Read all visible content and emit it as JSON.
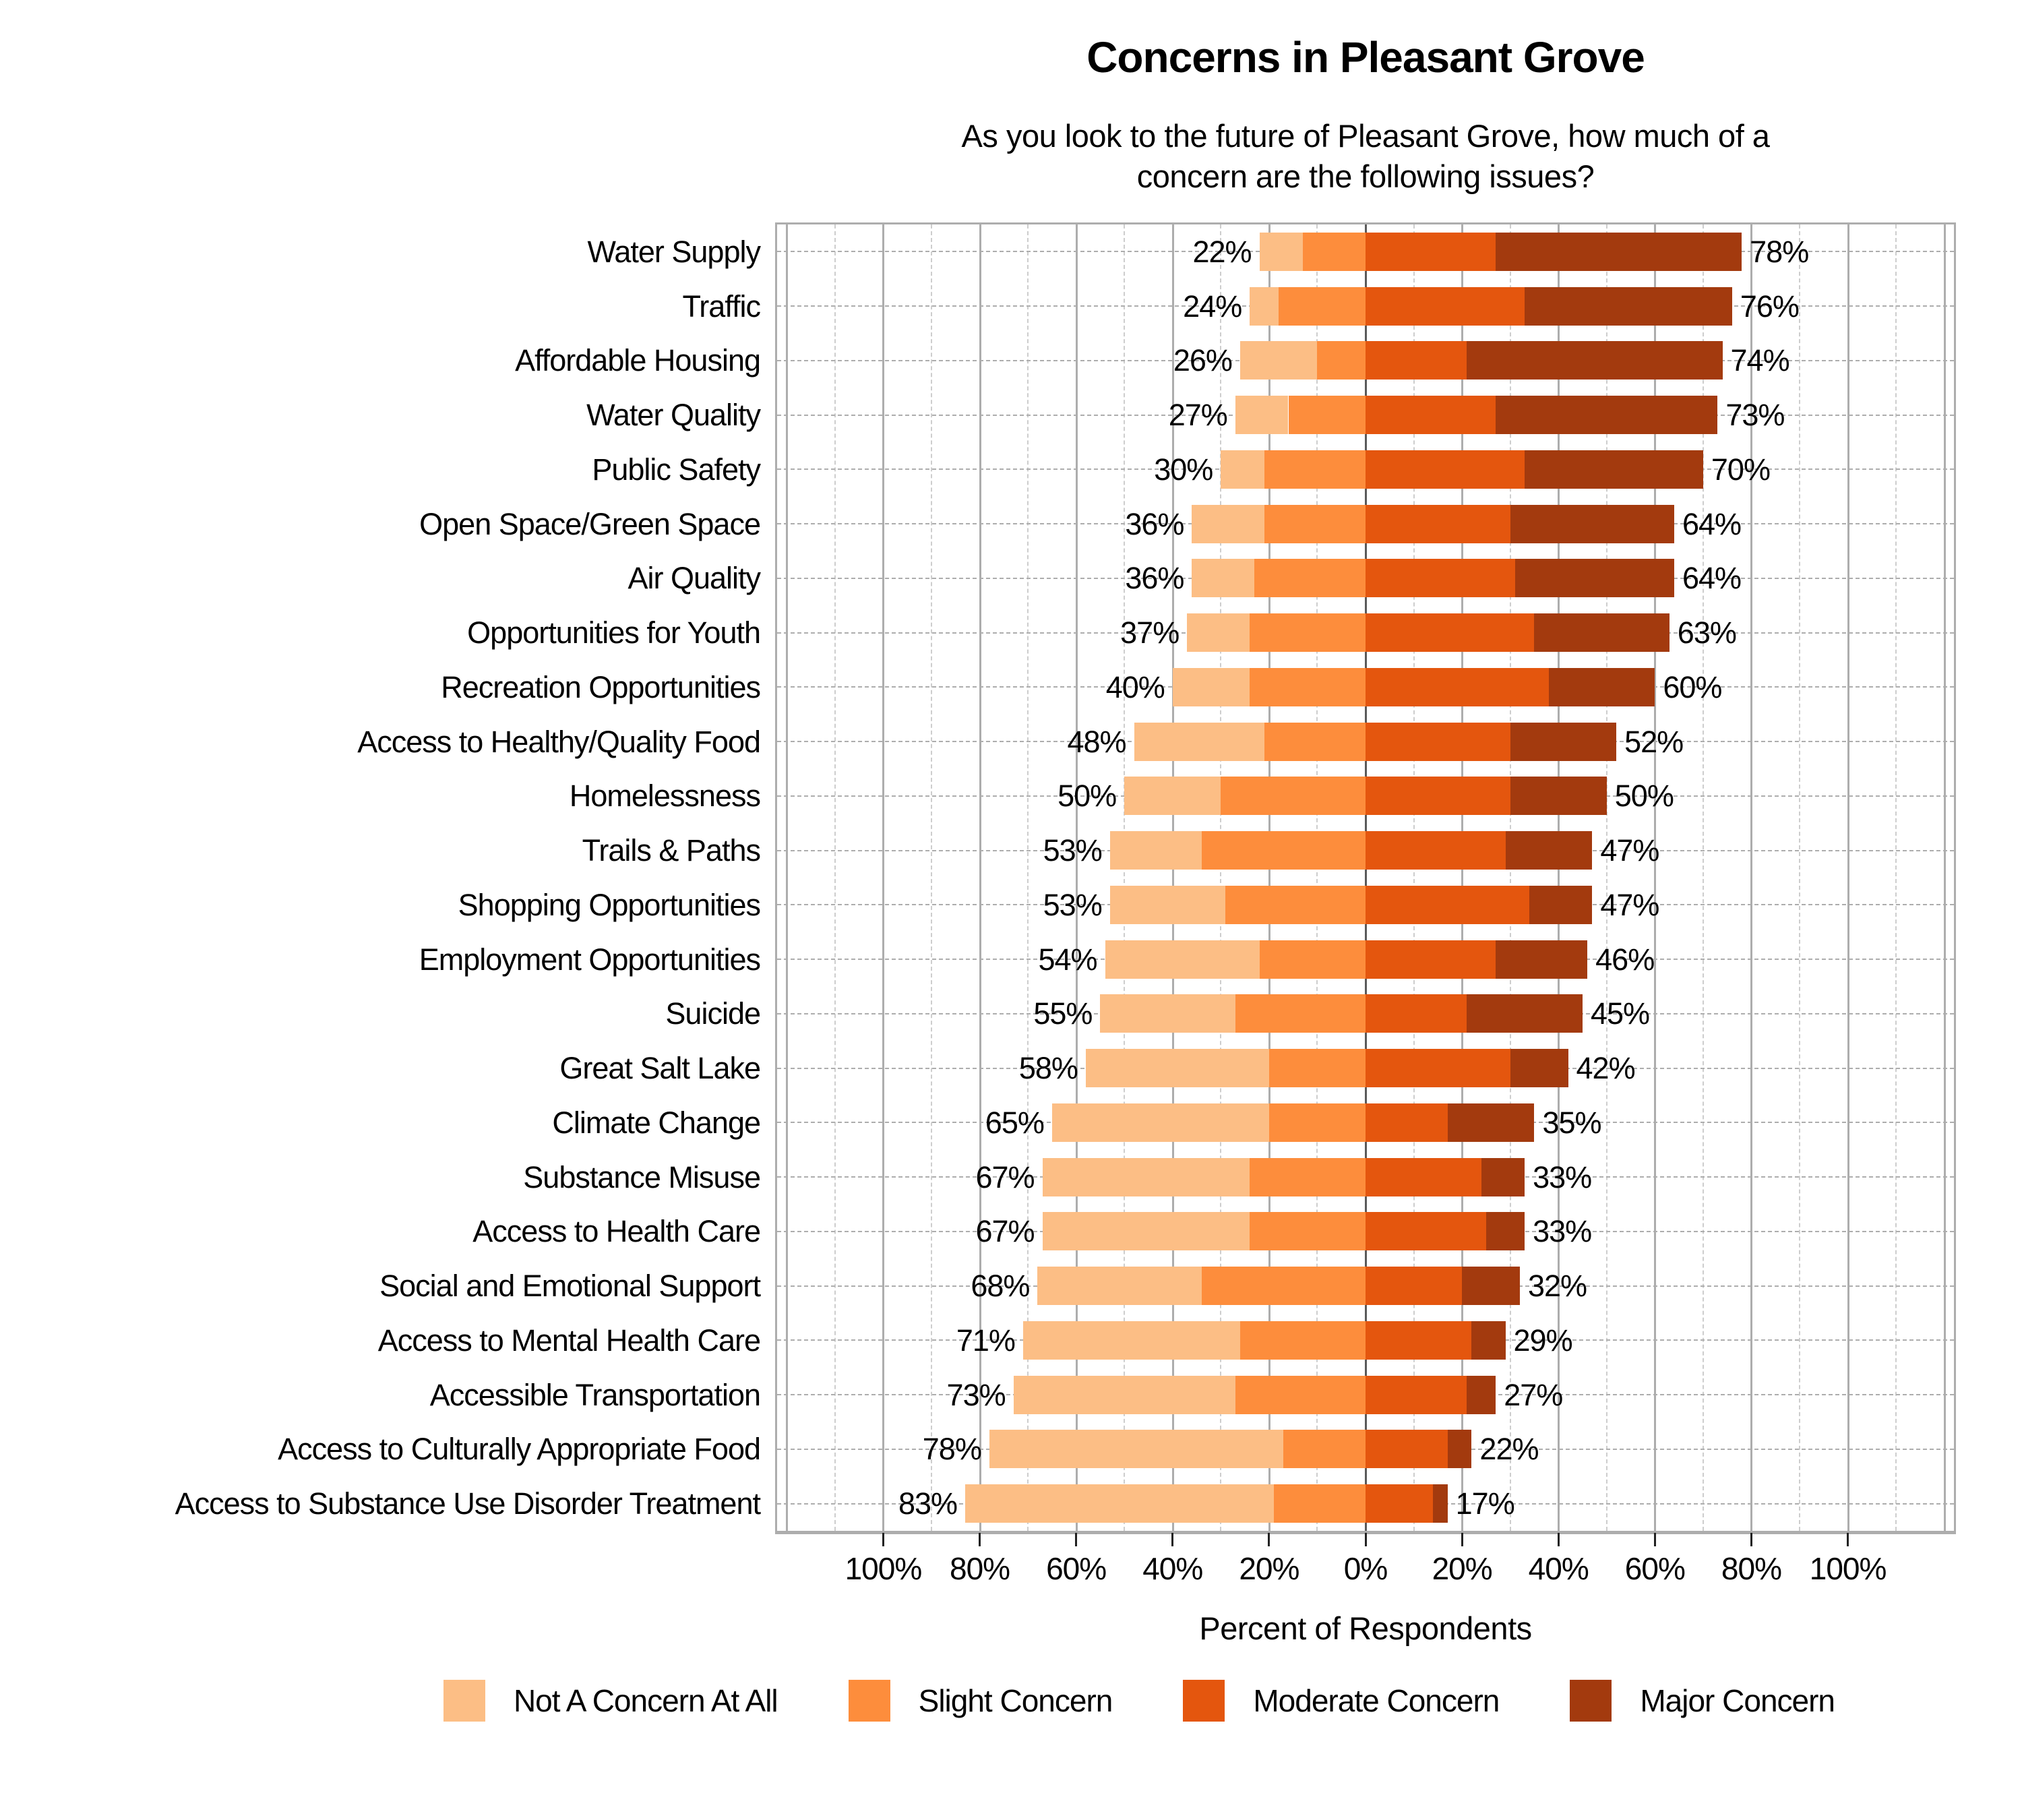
{
  "header": {
    "title": "Concerns in Pleasant Grove",
    "subtitle_line1": "As you look to the future of Pleasant Grove, how much of a",
    "subtitle_line2": "concern are the following issues?"
  },
  "chart_data": {
    "type": "bar",
    "stacking": "diverging",
    "orientation": "horizontal",
    "title": "Concerns in Pleasant Grove",
    "subtitle": "As you look to the future of Pleasant Grove, how much of a concern are the following issues?",
    "xlabel": "Percent of Respondents",
    "axis_range_pct": [
      -122,
      122
    ],
    "grid": {
      "major_every": 20,
      "minor_every": 10,
      "extent": 120
    },
    "axis_tick_values": [
      -100,
      -80,
      -60,
      -40,
      -20,
      0,
      20,
      40,
      60,
      80,
      100
    ],
    "axis_tick_labels": [
      "100%",
      "80%",
      "60%",
      "40%",
      "20%",
      "0%",
      "20%",
      "40%",
      "60%",
      "80%",
      "100%"
    ],
    "legend_position": "bottom",
    "series": [
      {
        "name": "Not A Concern At All",
        "color": "#fcbe85"
      },
      {
        "name": "Slight Concern",
        "color": "#fd8d3c"
      },
      {
        "name": "Moderate Concern",
        "color": "#e4560e"
      },
      {
        "name": "Major Concern",
        "color": "#a33a0e"
      }
    ],
    "categories": [
      {
        "label": "Water Supply",
        "values": [
          9,
          13,
          27,
          51
        ],
        "left": "22%",
        "right": "78%"
      },
      {
        "label": "Traffic",
        "values": [
          6,
          18,
          33,
          43
        ],
        "left": "24%",
        "right": "76%"
      },
      {
        "label": "Affordable Housing",
        "values": [
          16,
          10,
          21,
          53
        ],
        "left": "26%",
        "right": "74%"
      },
      {
        "label": "Water Quality",
        "values": [
          11,
          16,
          27,
          46
        ],
        "left": "27%",
        "right": "73%"
      },
      {
        "label": "Public Safety",
        "values": [
          9,
          21,
          33,
          37
        ],
        "left": "30%",
        "right": "70%"
      },
      {
        "label": "Open Space/Green Space",
        "values": [
          15,
          21,
          30,
          34
        ],
        "left": "36%",
        "right": "64%"
      },
      {
        "label": "Air Quality",
        "values": [
          13,
          23,
          31,
          33
        ],
        "left": "36%",
        "right": "64%"
      },
      {
        "label": "Opportunities for Youth",
        "values": [
          13,
          24,
          35,
          28
        ],
        "left": "37%",
        "right": "63%"
      },
      {
        "label": "Recreation Opportunities",
        "values": [
          16,
          24,
          38,
          22
        ],
        "left": "40%",
        "right": "60%"
      },
      {
        "label": "Access to Healthy/Quality Food",
        "values": [
          27,
          21,
          30,
          22
        ],
        "left": "48%",
        "right": "52%"
      },
      {
        "label": "Homelessness",
        "values": [
          20,
          30,
          30,
          20
        ],
        "left": "50%",
        "right": "50%"
      },
      {
        "label": "Trails & Paths",
        "values": [
          19,
          34,
          29,
          18
        ],
        "left": "53%",
        "right": "47%"
      },
      {
        "label": "Shopping Opportunities",
        "values": [
          24,
          29,
          34,
          13
        ],
        "left": "53%",
        "right": "47%"
      },
      {
        "label": "Employment Opportunities",
        "values": [
          32,
          22,
          27,
          19
        ],
        "left": "54%",
        "right": "46%"
      },
      {
        "label": "Suicide",
        "values": [
          28,
          27,
          21,
          24
        ],
        "left": "55%",
        "right": "45%"
      },
      {
        "label": "Great Salt Lake",
        "values": [
          38,
          20,
          30,
          12
        ],
        "left": "58%",
        "right": "42%"
      },
      {
        "label": "Climate Change",
        "values": [
          45,
          20,
          17,
          18
        ],
        "left": "65%",
        "right": "35%"
      },
      {
        "label": "Substance Misuse",
        "values": [
          43,
          24,
          24,
          9
        ],
        "left": "67%",
        "right": "33%"
      },
      {
        "label": "Access to Health Care",
        "values": [
          43,
          24,
          25,
          8
        ],
        "left": "67%",
        "right": "33%"
      },
      {
        "label": "Social and Emotional Support",
        "values": [
          34,
          34,
          20,
          12
        ],
        "left": "68%",
        "right": "32%"
      },
      {
        "label": "Access to Mental Health Care",
        "values": [
          45,
          26,
          22,
          7
        ],
        "left": "71%",
        "right": "29%"
      },
      {
        "label": "Accessible Transportation",
        "values": [
          46,
          27,
          21,
          6
        ],
        "left": "73%",
        "right": "27%"
      },
      {
        "label": "Access to Culturally Appropriate Food",
        "values": [
          61,
          17,
          17,
          5
        ],
        "left": "78%",
        "right": "22%"
      },
      {
        "label": "Access to Substance Use Disorder Treatment",
        "values": [
          64,
          19,
          14,
          3
        ],
        "left": "83%",
        "right": "17%"
      }
    ]
  }
}
